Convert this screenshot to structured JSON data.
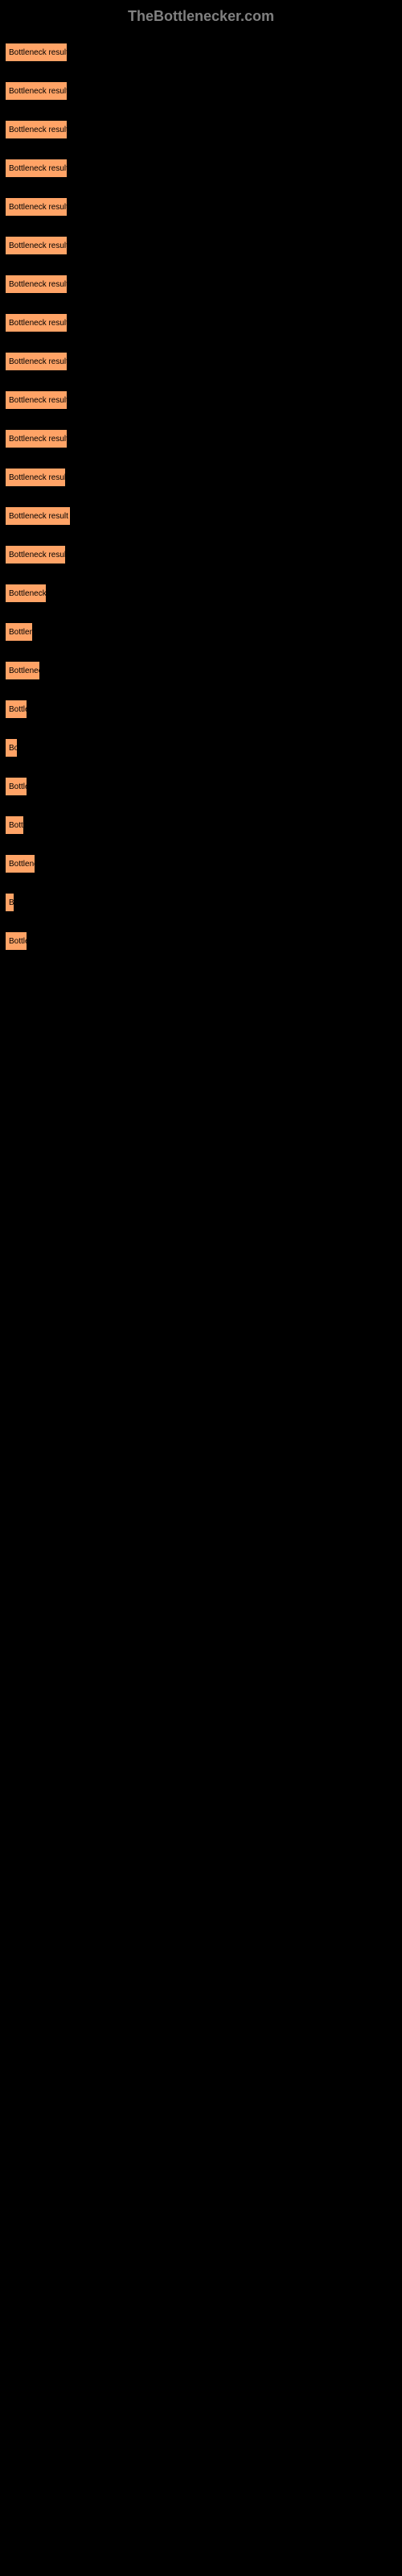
{
  "header": {
    "title": "TheBottlenecker.com"
  },
  "chart": {
    "type": "bar",
    "bar_color": "#ffa366",
    "background_color": "#000000",
    "text_color": "#000000",
    "header_color": "#808080",
    "bar_label": "Bottleneck result",
    "bars": [
      {
        "width": 78
      },
      {
        "width": 78
      },
      {
        "width": 78
      },
      {
        "width": 78
      },
      {
        "width": 78
      },
      {
        "width": 78
      },
      {
        "width": 78
      },
      {
        "width": 78
      },
      {
        "width": 78
      },
      {
        "width": 78
      },
      {
        "width": 78
      },
      {
        "width": 76
      },
      {
        "width": 82
      },
      {
        "width": 76
      },
      {
        "width": 52
      },
      {
        "width": 35
      },
      {
        "width": 44
      },
      {
        "width": 28
      },
      {
        "width": 16
      },
      {
        "width": 28
      },
      {
        "width": 24
      },
      {
        "width": 38
      },
      {
        "width": 12
      },
      {
        "width": 28
      }
    ]
  }
}
